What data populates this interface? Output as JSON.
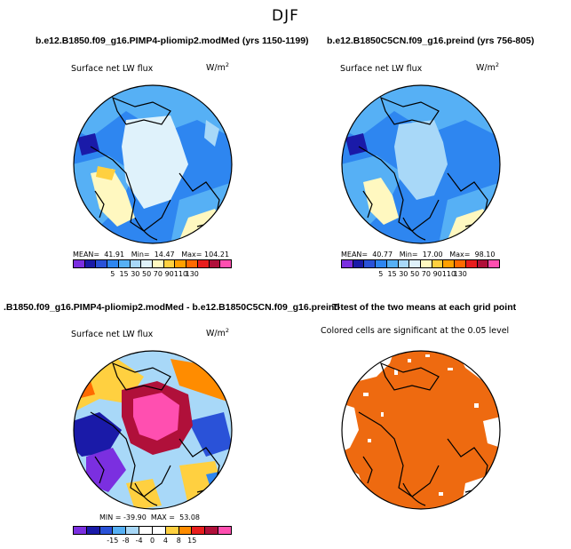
{
  "figure": {
    "season": "DJF"
  },
  "panels": [
    {
      "title": "b.e12.B1850.f09_g16.PIMP4-pliomip2.modMed (yrs 1150-1199)",
      "variable": "Surface net LW flux",
      "units": "W/m",
      "units_exp": "2",
      "stats": "MEAN=  41.91   Min=  14.47   Max= 104.21",
      "colorbar_ticks": [
        "5",
        "15",
        "30",
        "50",
        "70",
        "90",
        "110",
        "130"
      ],
      "colorbar_colors": [
        "#7b2fe0",
        "#1a1aa8",
        "#2a52d8",
        "#2e86f0",
        "#56b0f5",
        "#a8d8f8",
        "#dff2fb",
        "#fff8c0",
        "#ffd040",
        "#ffa000",
        "#ff6a00",
        "#e81e1e",
        "#b0103a",
        "#ff4fb0"
      ]
    },
    {
      "title": "b.e12.B1850C5CN.f09_g16.preind (yrs 756-805)",
      "variable": "Surface net LW flux",
      "units": "W/m",
      "units_exp": "2",
      "stats": "MEAN=  40.77   Min=  17.00   Max=  98.10",
      "colorbar_ticks": [
        "5",
        "15",
        "30",
        "50",
        "70",
        "90",
        "110",
        "130"
      ],
      "colorbar_colors": [
        "#7b2fe0",
        "#1a1aa8",
        "#2a52d8",
        "#2e86f0",
        "#56b0f5",
        "#a8d8f8",
        "#dff2fb",
        "#fff8c0",
        "#ffd040",
        "#ffa000",
        "#ff6a00",
        "#e81e1e",
        "#b0103a",
        "#ff4fb0"
      ]
    },
    {
      "title": ".B1850.f09_g16.PIMP4-pliomip2.modMed - b.e12.B1850C5CN.f09_g16.preind",
      "variable": "Surface net LW flux",
      "units": "W/m",
      "units_exp": "2",
      "stats": "MIN = -39.90  MAX =  53.08",
      "colorbar_ticks": [
        "-15",
        "-8",
        "-4",
        "0",
        "4",
        "8",
        "15"
      ],
      "colorbar_colors": [
        "#7b2fe0",
        "#1a1aa8",
        "#2a52d8",
        "#56b0f5",
        "#a8d8f8",
        "#ffffff",
        "#ffffff",
        "#ffd040",
        "#ff8c00",
        "#e81e1e",
        "#b0103a",
        "#ff4fb0"
      ]
    },
    {
      "title": "T-test of the two means at each grid point",
      "note": "Colored cells are significant at the 0.05 level"
    }
  ],
  "colors": {
    "ttest_significant": "#ee6a10",
    "ttest_not_significant": "#ffffff",
    "coastline": "#000000"
  }
}
